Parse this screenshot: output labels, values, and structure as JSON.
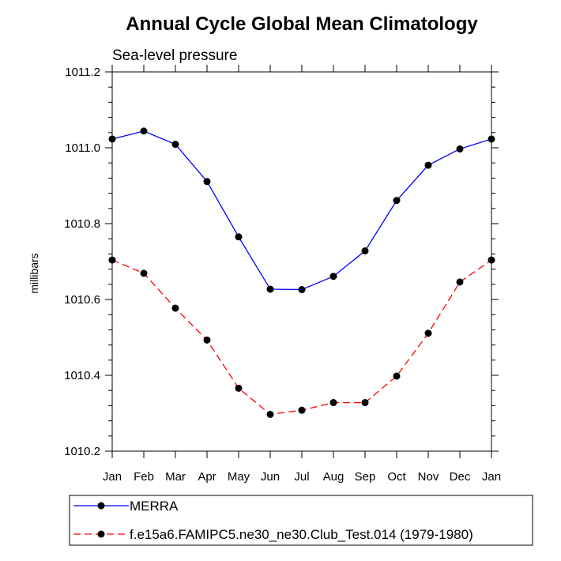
{
  "chart_data": {
    "type": "line",
    "title": "Annual Cycle Global Mean Climatology",
    "subtitle": "Sea-level pressure",
    "xlabel": "",
    "ylabel": "millibars",
    "categories": [
      "Jan",
      "Feb",
      "Mar",
      "Apr",
      "May",
      "Jun",
      "Jul",
      "Aug",
      "Sep",
      "Oct",
      "Nov",
      "Dec",
      "Jan"
    ],
    "ylim": [
      1010.2,
      1011.2
    ],
    "yticks": [
      1010.2,
      1010.4,
      1010.6,
      1010.8,
      1011.0,
      1011.2
    ],
    "ytick_labels": [
      "1010.2",
      "1010.4",
      "1010.6",
      "1010.8",
      "1011.0",
      "1011.2"
    ],
    "grid": false,
    "legend_position": "bottom",
    "series": [
      {
        "name": "MERRA",
        "color": "#0000ff",
        "line_style": "solid",
        "marker": "filled-circle",
        "values": [
          1011.023,
          1011.044,
          1011.009,
          1010.911,
          1010.765,
          1010.627,
          1010.626,
          1010.661,
          1010.728,
          1010.861,
          1010.954,
          1010.997,
          1011.023
        ]
      },
      {
        "name": "f.e15a6.FAMIPC5.ne30_ne30.Club_Test.014 (1979-1980)",
        "color": "#ff0000",
        "line_style": "dashed",
        "marker": "filled-circle",
        "values": [
          1010.704,
          1010.669,
          1010.577,
          1010.493,
          1010.366,
          1010.297,
          1010.308,
          1010.328,
          1010.328,
          1010.398,
          1010.511,
          1010.646,
          1010.704
        ]
      }
    ]
  }
}
